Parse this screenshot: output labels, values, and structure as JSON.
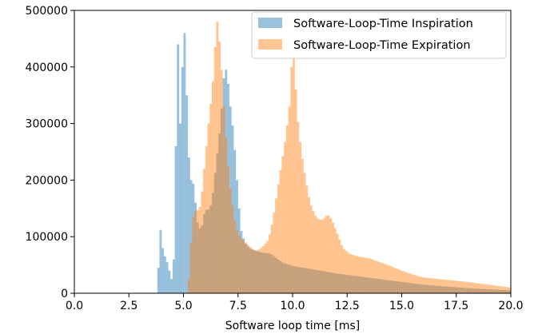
{
  "chart_data": {
    "type": "histogram",
    "xlabel": "Software loop time [ms]",
    "ylabel": "",
    "xlim": [
      0.0,
      20.0
    ],
    "ylim": [
      0,
      500000
    ],
    "x_ticks": [
      "0.0",
      "2.5",
      "5.0",
      "7.5",
      "10.0",
      "12.5",
      "15.0",
      "17.5",
      "20.0"
    ],
    "y_ticks": [
      "0",
      "100000",
      "200000",
      "300000",
      "400000",
      "500000"
    ],
    "legend_position": "upper-right",
    "grid": false,
    "series": [
      {
        "name": "Software-Loop-Time Inspiration",
        "color": "#1f77b4",
        "alpha": 0.45,
        "points": [
          [
            3.8,
            0
          ],
          [
            3.85,
            45000
          ],
          [
            3.95,
            112000
          ],
          [
            4.05,
            80000
          ],
          [
            4.15,
            65000
          ],
          [
            4.25,
            55000
          ],
          [
            4.35,
            40000
          ],
          [
            4.45,
            25000
          ],
          [
            4.55,
            60000
          ],
          [
            4.6,
            180000
          ],
          [
            4.65,
            260000
          ],
          [
            4.7,
            475000
          ],
          [
            4.75,
            440000
          ],
          [
            4.85,
            300000
          ],
          [
            4.95,
            400000
          ],
          [
            5.05,
            460000
          ],
          [
            5.15,
            350000
          ],
          [
            5.25,
            240000
          ],
          [
            5.35,
            200000
          ],
          [
            5.5,
            190000
          ],
          [
            5.6,
            130000
          ],
          [
            5.7,
            120000
          ],
          [
            5.8,
            110000
          ],
          [
            5.9,
            130000
          ],
          [
            6.0,
            150000
          ],
          [
            6.1,
            145000
          ],
          [
            6.2,
            150000
          ],
          [
            6.3,
            160000
          ],
          [
            6.5,
            230000
          ],
          [
            6.7,
            300000
          ],
          [
            6.85,
            380000
          ],
          [
            6.95,
            395000
          ],
          [
            7.05,
            370000
          ],
          [
            7.15,
            330000
          ],
          [
            7.3,
            280000
          ],
          [
            7.45,
            200000
          ],
          [
            7.55,
            150000
          ],
          [
            7.65,
            110000
          ],
          [
            7.8,
            90000
          ],
          [
            8.0,
            80000
          ],
          [
            8.3,
            75000
          ],
          [
            8.6,
            72000
          ],
          [
            9.0,
            70000
          ],
          [
            9.5,
            55000
          ],
          [
            10.0,
            48000
          ],
          [
            11.0,
            42000
          ],
          [
            12.0,
            35000
          ],
          [
            13.0,
            30000
          ],
          [
            14.0,
            25000
          ],
          [
            15.0,
            20000
          ],
          [
            16.0,
            15000
          ],
          [
            17.0,
            12000
          ],
          [
            18.0,
            9000
          ],
          [
            19.0,
            7000
          ],
          [
            20.0,
            5000
          ]
        ]
      },
      {
        "name": "Software-Loop-Time Expiration",
        "color": "#ff7f0e",
        "alpha": 0.45,
        "points": [
          [
            5.2,
            0
          ],
          [
            5.3,
            50000
          ],
          [
            5.4,
            130000
          ],
          [
            5.5,
            140000
          ],
          [
            5.6,
            150000
          ],
          [
            5.7,
            145000
          ],
          [
            5.8,
            160000
          ],
          [
            5.9,
            200000
          ],
          [
            6.0,
            240000
          ],
          [
            6.1,
            280000
          ],
          [
            6.2,
            320000
          ],
          [
            6.3,
            350000
          ],
          [
            6.4,
            400000
          ],
          [
            6.5,
            470000
          ],
          [
            6.55,
            480000
          ],
          [
            6.6,
            460000
          ],
          [
            6.7,
            430000
          ],
          [
            6.8,
            360000
          ],
          [
            6.9,
            300000
          ],
          [
            7.0,
            250000
          ],
          [
            7.1,
            200000
          ],
          [
            7.2,
            170000
          ],
          [
            7.3,
            140000
          ],
          [
            7.4,
            120000
          ],
          [
            7.5,
            105000
          ],
          [
            7.7,
            95000
          ],
          [
            7.9,
            88000
          ],
          [
            8.1,
            80000
          ],
          [
            8.3,
            75000
          ],
          [
            8.5,
            78000
          ],
          [
            8.7,
            85000
          ],
          [
            8.9,
            95000
          ],
          [
            9.1,
            130000
          ],
          [
            9.3,
            180000
          ],
          [
            9.5,
            230000
          ],
          [
            9.7,
            280000
          ],
          [
            9.85,
            330000
          ],
          [
            9.95,
            400000
          ],
          [
            10.0,
            440000
          ],
          [
            10.1,
            400000
          ],
          [
            10.2,
            320000
          ],
          [
            10.4,
            250000
          ],
          [
            10.6,
            200000
          ],
          [
            10.8,
            160000
          ],
          [
            11.0,
            140000
          ],
          [
            11.2,
            130000
          ],
          [
            11.4,
            130000
          ],
          [
            11.6,
            140000
          ],
          [
            11.8,
            130000
          ],
          [
            12.0,
            110000
          ],
          [
            12.3,
            80000
          ],
          [
            12.6,
            70000
          ],
          [
            13.0,
            65000
          ],
          [
            13.5,
            62000
          ],
          [
            14.0,
            55000
          ],
          [
            14.5,
            48000
          ],
          [
            15.0,
            40000
          ],
          [
            15.5,
            33000
          ],
          [
            16.0,
            28000
          ],
          [
            17.0,
            24000
          ],
          [
            18.0,
            20000
          ],
          [
            19.0,
            15000
          ],
          [
            20.0,
            10000
          ]
        ]
      }
    ]
  }
}
